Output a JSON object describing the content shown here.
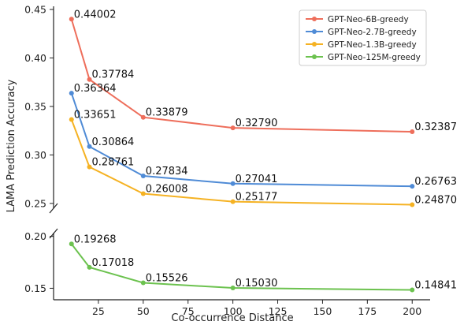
{
  "chart_data": {
    "type": "line",
    "title": "",
    "xlabel": "Co-occurrence Distance",
    "ylabel": "LAMA Prediction Accuracy",
    "x": [
      10,
      20,
      50,
      100,
      200
    ],
    "xlim": [
      0,
      210
    ],
    "xticks": [
      25,
      50,
      75,
      100,
      125,
      150,
      175,
      200
    ],
    "broken_y_axis": true,
    "panels": [
      {
        "name": "top",
        "ylim": [
          0.245,
          0.45
        ],
        "yticks": [
          0.25,
          0.3,
          0.35,
          0.4,
          0.45
        ],
        "series_indices": [
          0,
          1,
          2
        ]
      },
      {
        "name": "bottom",
        "ylim": [
          0.145,
          0.202
        ],
        "yticks": [
          0.15,
          0.2
        ],
        "series_indices": [
          3
        ]
      }
    ],
    "legend_position": "top-right",
    "grid": false,
    "series": [
      {
        "name": "GPT-Neo-6B-greedy",
        "color": "#ee6e5b",
        "values": [
          0.44002,
          0.37784,
          0.33879,
          0.3279,
          0.32387
        ],
        "labels": [
          "0.44002",
          "0.37784",
          "0.33879",
          "0.32790",
          "0.32387"
        ]
      },
      {
        "name": "GPT-Neo-2.7B-greedy",
        "color": "#4f8bd6",
        "values": [
          0.36364,
          0.30864,
          0.27834,
          0.27041,
          0.26763
        ],
        "labels": [
          "0.36364",
          "0.30864",
          "0.27834",
          "0.27041",
          "0.26763"
        ]
      },
      {
        "name": "GPT-Neo-1.3B-greedy",
        "color": "#f5b223",
        "values": [
          0.33651,
          0.28761,
          0.26008,
          0.25177,
          0.2487
        ],
        "labels": [
          "0.33651",
          "0.28761",
          "0.26008",
          "0.25177",
          "0.24870"
        ]
      },
      {
        "name": "GPT-Neo-125M-greedy",
        "color": "#6cc24f",
        "values": [
          0.19268,
          0.17018,
          0.15526,
          0.1503,
          0.14841
        ],
        "labels": [
          "0.19268",
          "0.17018",
          "0.15526",
          "0.15030",
          "0.14841"
        ]
      }
    ]
  }
}
